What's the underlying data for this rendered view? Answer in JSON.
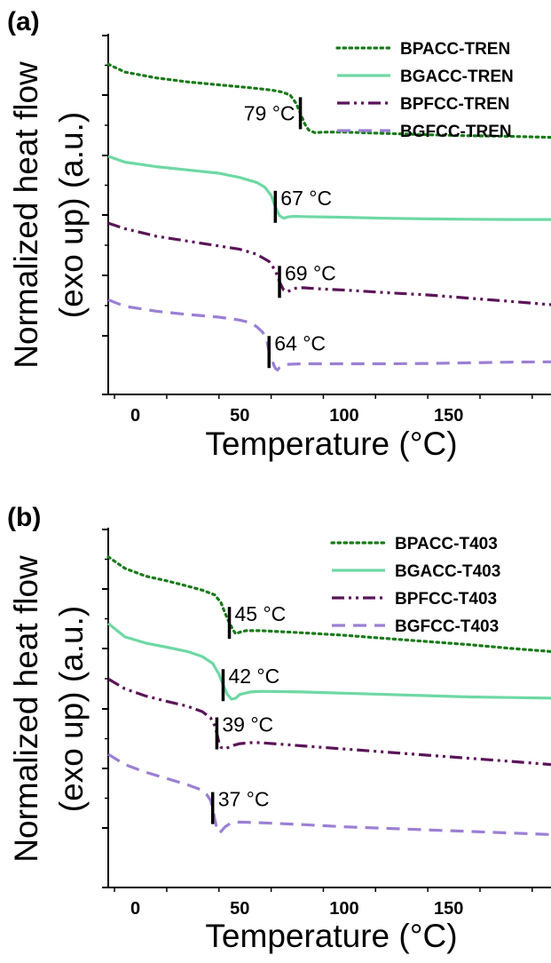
{
  "chart_data": [
    {
      "panel": "(a)",
      "type": "line",
      "xlabel": "Temperature (°C)",
      "ylabel_line1": "Normalized heat flow",
      "ylabel_line2": "(exo up) (a.u.)",
      "xlim": [
        -13,
        199
      ],
      "xticks": [
        0,
        50,
        100,
        150
      ],
      "tick_labels": [
        "0",
        "50",
        "100",
        "150"
      ],
      "yticks_count": 5,
      "legend_position": "top-right",
      "series": [
        {
          "name": "BPACC-TREN",
          "color": "#1a7a1a",
          "dash": "dot",
          "tg": 79,
          "tg_label": "79 °C",
          "label_side": "left",
          "x": [
            -13,
            -5,
            10,
            25,
            40,
            55,
            65,
            70,
            74,
            77,
            79,
            81,
            83,
            86,
            90,
            100,
            120,
            140,
            160,
            180,
            199
          ],
          "y": [
            5.12,
            4.88,
            4.7,
            4.58,
            4.49,
            4.4,
            4.33,
            4.27,
            4.18,
            3.92,
            3.62,
            3.3,
            3.1,
            3.02,
            3.04,
            3.04,
            3.0,
            2.96,
            2.93,
            2.91,
            2.88
          ]
        },
        {
          "name": "BGACC-TREN",
          "color": "#6ed8a4",
          "dash": "solid",
          "tg": 67,
          "tg_label": "67 °C",
          "label_side": "right",
          "x": [
            -13,
            -5,
            10,
            25,
            40,
            50,
            58,
            62,
            65,
            67,
            69,
            71,
            73,
            76,
            80,
            100,
            120,
            140,
            160,
            180,
            199
          ],
          "y": [
            2.3,
            2.12,
            1.98,
            1.88,
            1.78,
            1.65,
            1.5,
            1.35,
            1.1,
            0.75,
            0.48,
            0.4,
            0.44,
            0.46,
            0.45,
            0.43,
            0.4,
            0.38,
            0.37,
            0.36,
            0.36
          ]
        },
        {
          "name": "BPFCC-TREN",
          "color": "#5a1458",
          "dash": "dashdotdot",
          "tg": 69,
          "tg_label": "69 °C",
          "label_side": "right",
          "x": [
            -13,
            -5,
            10,
            25,
            40,
            50,
            58,
            64,
            67,
            69,
            71,
            73,
            76,
            80,
            90,
            100,
            120,
            140,
            160,
            180,
            199
          ],
          "y": [
            0.25,
            0.08,
            -0.15,
            -0.3,
            -0.45,
            -0.55,
            -0.7,
            -0.92,
            -1.2,
            -1.55,
            -1.8,
            -1.85,
            -1.75,
            -1.73,
            -1.77,
            -1.8,
            -1.88,
            -1.95,
            -2.05,
            -2.15,
            -2.25
          ]
        },
        {
          "name": "BGFCC-TREN",
          "color": "#9b7fd4",
          "dash": "dash",
          "tg": 64,
          "tg_label": "64 °C",
          "label_side": "right",
          "x": [
            -13,
            -5,
            10,
            25,
            40,
            50,
            55,
            58,
            61,
            63,
            64,
            66,
            67,
            68,
            69,
            72,
            80,
            100,
            120,
            140,
            160,
            180,
            199
          ],
          "y": [
            -2.1,
            -2.3,
            -2.45,
            -2.55,
            -2.63,
            -2.72,
            -2.8,
            -2.92,
            -3.1,
            -3.35,
            -3.7,
            -4.05,
            -4.2,
            -4.25,
            -4.18,
            -4.08,
            -4.06,
            -4.06,
            -4.06,
            -4.05,
            -4.03,
            -4.01,
            -4.0
          ]
        }
      ]
    },
    {
      "panel": "(b)",
      "type": "line",
      "xlabel": "Temperature (°C)",
      "ylabel_line1": "Normalized heat flow",
      "ylabel_line2": "(exo up) (a.u.)",
      "xlim": [
        -13,
        199
      ],
      "xticks": [
        0,
        50,
        100,
        150
      ],
      "tick_labels": [
        "0",
        "50",
        "100",
        "150"
      ],
      "yticks_count": 5,
      "legend_position": "top-right",
      "series": [
        {
          "name": "BPACC-T403",
          "color": "#1a7a1a",
          "dash": "dot",
          "tg": 45,
          "tg_label": "45 °C",
          "label_side": "right",
          "x": [
            -13,
            -5,
            5,
            15,
            25,
            32,
            38,
            41,
            43,
            45,
            47,
            48,
            50,
            53,
            60,
            80,
            100,
            120,
            140,
            160,
            180,
            199
          ],
          "y": [
            5.12,
            4.75,
            4.5,
            4.35,
            4.18,
            4.05,
            3.9,
            3.65,
            3.3,
            3.0,
            2.75,
            2.65,
            2.7,
            2.75,
            2.75,
            2.68,
            2.6,
            2.5,
            2.4,
            2.3,
            2.18,
            2.08
          ]
        },
        {
          "name": "BGACC-T403",
          "color": "#6ed8a4",
          "dash": "solid",
          "tg": 42,
          "tg_label": "42 °C",
          "label_side": "right",
          "x": [
            -13,
            -5,
            5,
            15,
            25,
            32,
            37,
            40,
            42,
            44,
            46,
            48,
            50,
            55,
            60,
            80,
            100,
            120,
            140,
            160,
            180,
            199
          ],
          "y": [
            2.98,
            2.55,
            2.35,
            2.22,
            2.08,
            1.92,
            1.7,
            1.35,
            1.0,
            0.7,
            0.55,
            0.58,
            0.7,
            0.78,
            0.8,
            0.78,
            0.74,
            0.7,
            0.66,
            0.62,
            0.6,
            0.58
          ]
        },
        {
          "name": "BPFCC-T403",
          "color": "#5a1458",
          "dash": "dashdotdot",
          "tg": 39,
          "tg_label": "39 °C",
          "label_side": "right",
          "x": [
            -13,
            -5,
            5,
            15,
            25,
            32,
            36,
            38,
            39,
            40,
            41,
            43,
            46,
            50,
            55,
            60,
            80,
            100,
            120,
            140,
            160,
            180,
            199
          ],
          "y": [
            1.2,
            0.88,
            0.65,
            0.48,
            0.32,
            0.15,
            -0.05,
            -0.3,
            -0.55,
            -0.85,
            -1.0,
            -1.05,
            -0.95,
            -0.88,
            -0.85,
            -0.85,
            -0.95,
            -1.05,
            -1.15,
            -1.25,
            -1.35,
            -1.45,
            -1.55
          ]
        },
        {
          "name": "BGFCC-T403",
          "color": "#9b7fd4",
          "dash": "dash",
          "tg": 37,
          "tg_label": "37 °C",
          "label_side": "right",
          "x": [
            -13,
            -5,
            5,
            15,
            25,
            31,
            34,
            36,
            37,
            38,
            39,
            40,
            41,
            43,
            46,
            50,
            60,
            80,
            100,
            120,
            140,
            160,
            180,
            199
          ],
          "y": [
            -1.22,
            -1.55,
            -1.8,
            -2.0,
            -2.2,
            -2.35,
            -2.5,
            -2.7,
            -2.95,
            -3.3,
            -3.6,
            -3.75,
            -3.7,
            -3.55,
            -3.42,
            -3.4,
            -3.42,
            -3.48,
            -3.55,
            -3.6,
            -3.65,
            -3.7,
            -3.75,
            -3.8
          ]
        }
      ]
    }
  ]
}
